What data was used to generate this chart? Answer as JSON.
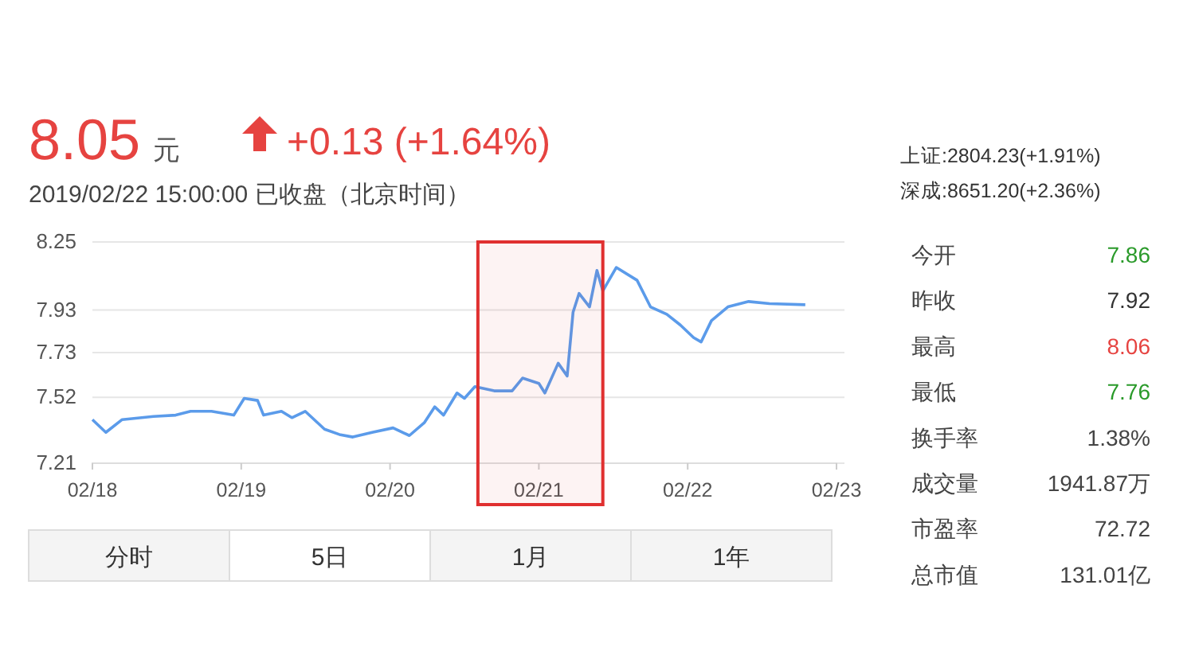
{
  "chart_data": {
    "type": "line",
    "title": "8.05 元",
    "subtitle": "2019/02/22 15:00:00  已收盘（北京时间）",
    "annotations": [
      "+0.13 (+1.64%)",
      "上证:2804.23(+1.91%)",
      "深成:8651.20(+2.36%)",
      "今开",
      "7.86",
      "昨收",
      "7.92",
      "最高",
      "8.06",
      "最低",
      "7.76",
      "换手率",
      "1.38%",
      "成交量",
      "1941.87万",
      "市盈率",
      "72.72",
      "总市值",
      "131.01亿",
      "分时",
      "5日",
      "1月",
      "1年"
    ],
    "x": [
      "2019-02-18T00:00",
      "2019-02-18T02:10",
      "2019-02-18T04:48",
      "2019-02-18T09:50",
      "2019-02-18T13:26",
      "2019-02-18T15:50",
      "2019-02-18T19:12",
      "2019-02-18T22:48",
      "2019-02-19T00:29",
      "2019-02-19T02:38",
      "2019-02-19T03:36",
      "2019-02-19T06:29",
      "2019-02-19T08:10",
      "2019-02-19T10:19",
      "2019-02-19T13:26",
      "2019-02-19T15:50",
      "2019-02-19T18:00",
      "2019-02-19T21:07",
      "2019-02-20T00:29",
      "2019-02-20T03:07",
      "2019-02-20T05:31",
      "2019-02-20T07:12",
      "2019-02-20T08:38",
      "2019-02-20T10:48",
      "2019-02-20T12:00",
      "2019-02-20T13:41",
      "2019-02-20T16:48",
      "2019-02-20T19:41",
      "2019-02-20T21:22",
      "2019-02-21T00:00",
      "2019-02-21T00:58",
      "2019-02-21T03:07",
      "2019-02-21T04:34",
      "2019-02-21T05:31",
      "2019-02-21T06:29",
      "2019-02-21T08:10",
      "2019-02-21T09:22",
      "2019-02-21T10:19",
      "2019-02-21T12:29",
      "2019-02-21T15:50",
      "2019-02-21T18:00",
      "2019-02-21T20:38",
      "2019-02-21T22:48",
      "2019-02-22T00:58",
      "2019-02-22T02:10",
      "2019-02-22T03:50",
      "2019-02-22T06:29",
      "2019-02-22T09:50",
      "2019-02-22T13:12",
      "2019-02-22T18:58"
    ],
    "series": [
      {
        "color": "#5b9bea",
        "values": [
          7.415,
          7.355,
          7.415,
          7.43,
          7.436,
          7.454,
          7.454,
          7.436,
          7.515,
          7.505,
          7.436,
          7.454,
          7.424,
          7.454,
          7.37,
          7.345,
          7.333,
          7.355,
          7.376,
          7.34,
          7.4,
          7.475,
          7.436,
          7.54,
          7.515,
          7.57,
          7.55,
          7.55,
          7.61,
          7.585,
          7.54,
          7.68,
          7.62,
          7.92,
          8.008,
          7.945,
          8.116,
          8.02,
          8.13,
          8.07,
          7.945,
          7.91,
          7.86,
          7.8,
          7.78,
          7.88,
          7.945,
          7.97,
          7.96,
          7.955
        ]
      }
    ],
    "xlim": [
      "2019-02-18",
      "2019-02-23"
    ],
    "xticks": [
      {
        "value": "2019-02-18",
        "label": "02/18"
      },
      {
        "value": "2019-02-19",
        "label": "02/19"
      },
      {
        "value": "2019-02-20",
        "label": "02/20"
      },
      {
        "value": "2019-02-21",
        "label": "02/21"
      },
      {
        "value": "2019-02-22",
        "label": "02/22"
      },
      {
        "value": "2019-02-23",
        "label": "02/23"
      }
    ],
    "ylim": [
      7.21,
      8.25
    ],
    "yticks": [
      7.21,
      7.52,
      7.73,
      7.93,
      8.25
    ],
    "grid": "y",
    "marker": "none",
    "line_style": "solid",
    "bands": [
      {
        "axis": "x",
        "from": "2019-02-20T14:10",
        "to": "2019-02-21T10:19",
        "color": "#e03030"
      }
    ]
  }
}
